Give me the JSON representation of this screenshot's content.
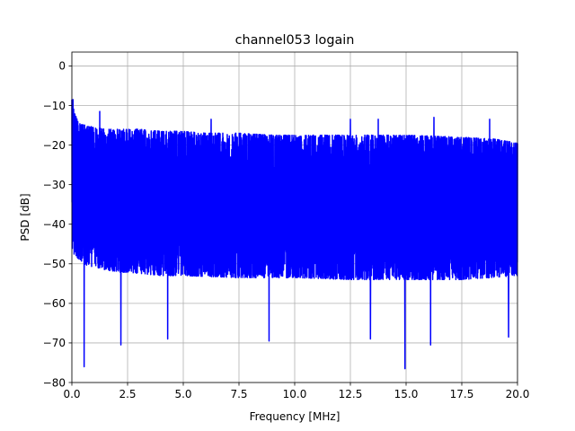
{
  "chart_data": {
    "type": "line",
    "title": "channel053 logain",
    "xlabel": "Frequency [MHz]",
    "ylabel": "PSD [dB]",
    "xlim": [
      0,
      20
    ],
    "ylim": [
      -80,
      3.5
    ],
    "xticks": [
      0,
      2.5,
      5,
      7.5,
      10,
      12.5,
      15,
      17.5,
      20
    ],
    "xtick_labels": [
      "0.0",
      "2.5",
      "5.0",
      "7.5",
      "10.0",
      "12.5",
      "15.0",
      "17.5",
      "20.0"
    ],
    "yticks": [
      0,
      -10,
      -20,
      -30,
      -40,
      -50,
      -60,
      -70,
      -80
    ],
    "ytick_labels": [
      "0",
      "−10",
      "−20",
      "−30",
      "−40",
      "−50",
      "−60",
      "−70",
      "−80"
    ],
    "grid": true,
    "series": [
      {
        "color": "#0000ff",
        "upper_envelope": {
          "x": [
            0,
            0.1,
            0.3,
            0.6,
            1.0,
            1.5,
            2.0,
            3.0,
            4.0,
            5.0,
            6.0,
            7.5,
            9.0,
            10.0,
            12.5,
            15.0,
            17.5,
            19.0,
            20.0
          ],
          "y": [
            -8.5,
            -11.5,
            -14.5,
            -15,
            -15.5,
            -16,
            -16,
            -16,
            -16.5,
            -16.5,
            -17,
            -17,
            -17.5,
            -17.5,
            -17.5,
            -17.5,
            -18,
            -18.5,
            -19.5
          ]
        },
        "lower_envelope": {
          "x": [
            0,
            0.5,
            1.0,
            2.0,
            3.0,
            4.0,
            5.0,
            7.5,
            10.0,
            12.5,
            15.0,
            17.5,
            20.0
          ],
          "y": [
            -47,
            -50,
            -51,
            -52,
            -52.5,
            -53,
            -53,
            -53.5,
            -53.5,
            -54,
            -54,
            -54,
            -53
          ]
        },
        "peaks": [
          {
            "x": 0.05,
            "y": -8.5
          },
          {
            "x": 1.25,
            "y": -11.5
          },
          {
            "x": 6.25,
            "y": -13.5
          },
          {
            "x": 12.5,
            "y": -13.5
          },
          {
            "x": 13.75,
            "y": -13.5
          },
          {
            "x": 16.25,
            "y": -13
          },
          {
            "x": 18.75,
            "y": -13.5
          }
        ],
        "dips": [
          {
            "x": 0.55,
            "y": -76
          },
          {
            "x": 2.2,
            "y": -70.5
          },
          {
            "x": 4.3,
            "y": -69
          },
          {
            "x": 8.85,
            "y": -69.5
          },
          {
            "x": 13.4,
            "y": -69
          },
          {
            "x": 14.95,
            "y": -76.5
          },
          {
            "x": 16.1,
            "y": -70.5
          },
          {
            "x": 19.6,
            "y": -68.5
          }
        ]
      }
    ]
  }
}
